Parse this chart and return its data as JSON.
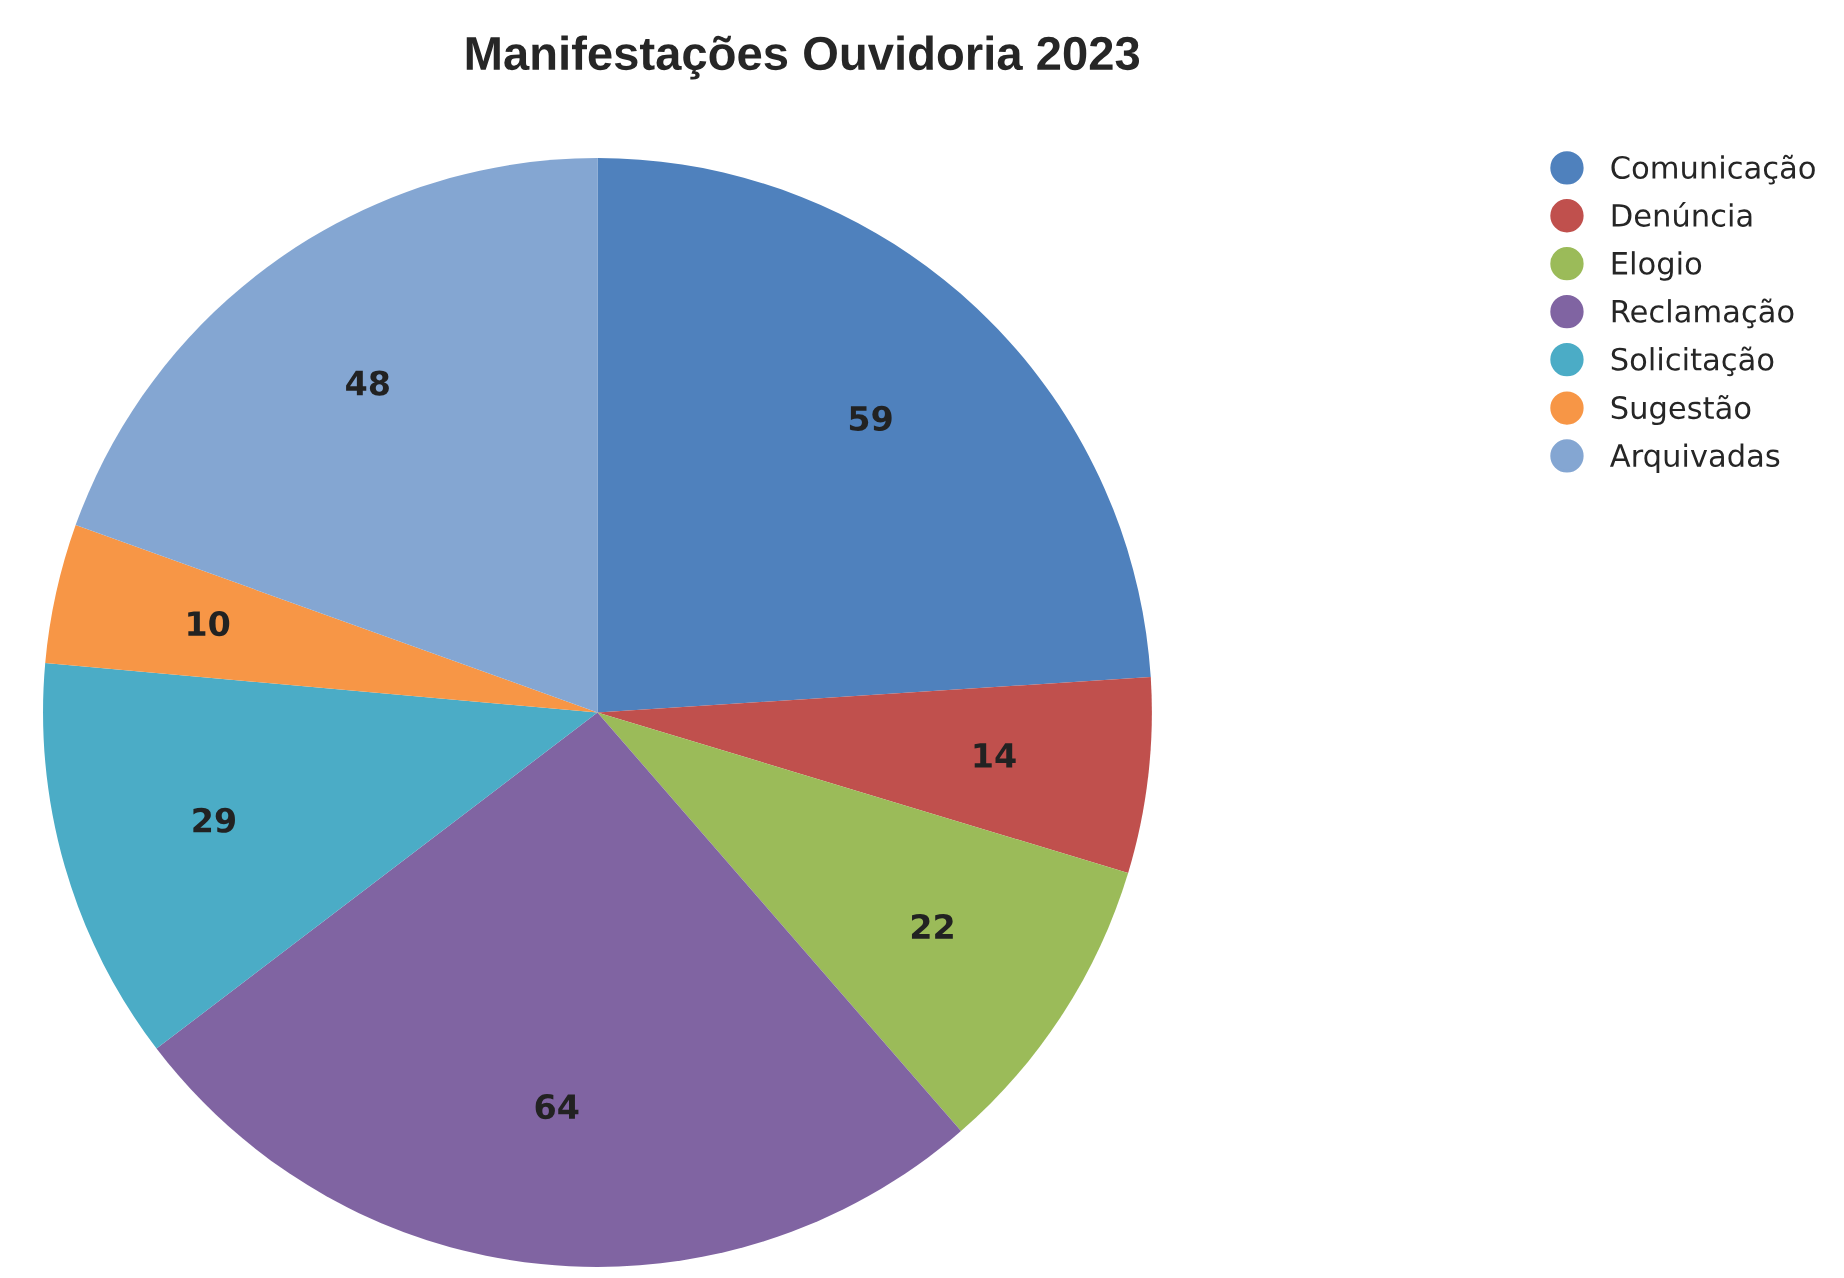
{
  "chart_data": {
    "type": "pie",
    "title": "Manifestações Ouvidoria 2023",
    "categories": [
      "Comunicação",
      "Denúncia",
      "Elogio",
      "Reclamação",
      "Solicitação",
      "Sugestão",
      "Arquivadas"
    ],
    "values": [
      59,
      14,
      22,
      64,
      29,
      10,
      48
    ],
    "colors": [
      "#4f81bd",
      "#c0504d",
      "#9bbb59",
      "#8064a2",
      "#4bacc6",
      "#f79646",
      "#84a6d2"
    ],
    "data_labels": true,
    "legend": "top right"
  }
}
